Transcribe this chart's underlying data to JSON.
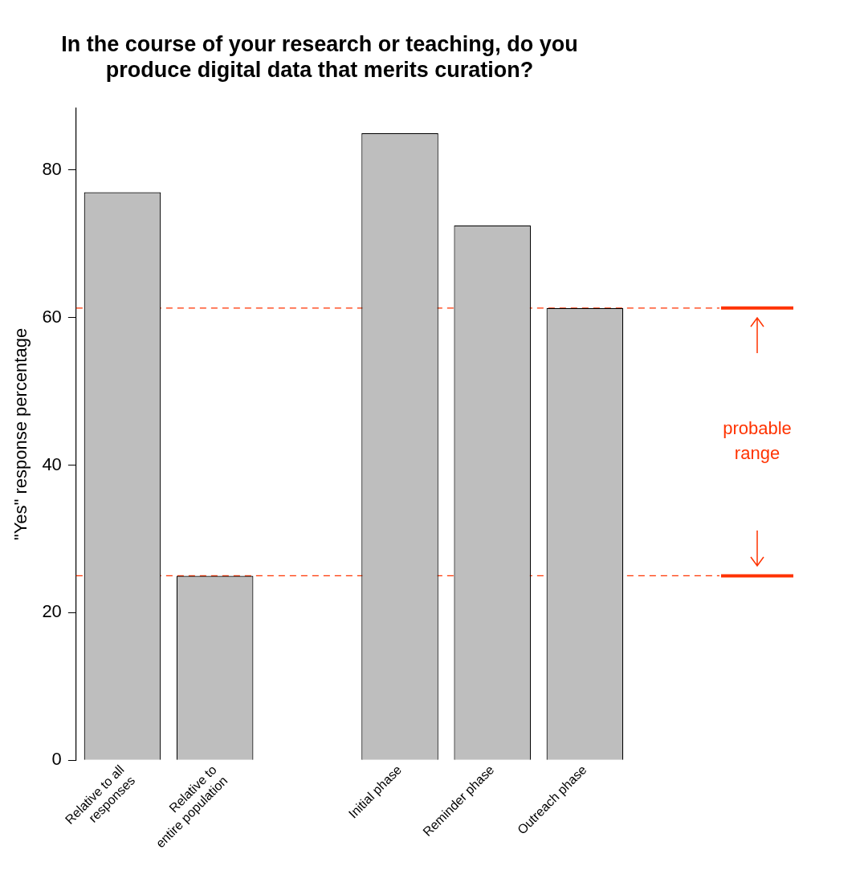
{
  "chart_data": {
    "type": "bar",
    "title": "In the course of your research or teaching, do you\nproduce digital data that merits curation?",
    "ylabel": "\"Yes\" response percentage",
    "categories": [
      "Relative to all\nresponses",
      "Relative to\nentire population",
      null,
      "Initial phase",
      "Reminder phase",
      "Outreach phase"
    ],
    "series": [
      {
        "color": "#bebebe",
        "values": [
          77,
          25,
          null,
          85,
          72.5,
          61.3
        ]
      }
    ],
    "ylim": [
      0,
      88.4
    ],
    "yticks": [
      0,
      20,
      40,
      60,
      80
    ],
    "grid": false,
    "legend": false,
    "ref_lines": [
      {
        "axis": "y",
        "value": 61.3,
        "color": "#ff3300",
        "line_style": "dashed"
      },
      {
        "axis": "y",
        "value": 25,
        "color": "#ff3300",
        "line_style": "dashed"
      }
    ],
    "annotations": [
      "probable range"
    ]
  }
}
